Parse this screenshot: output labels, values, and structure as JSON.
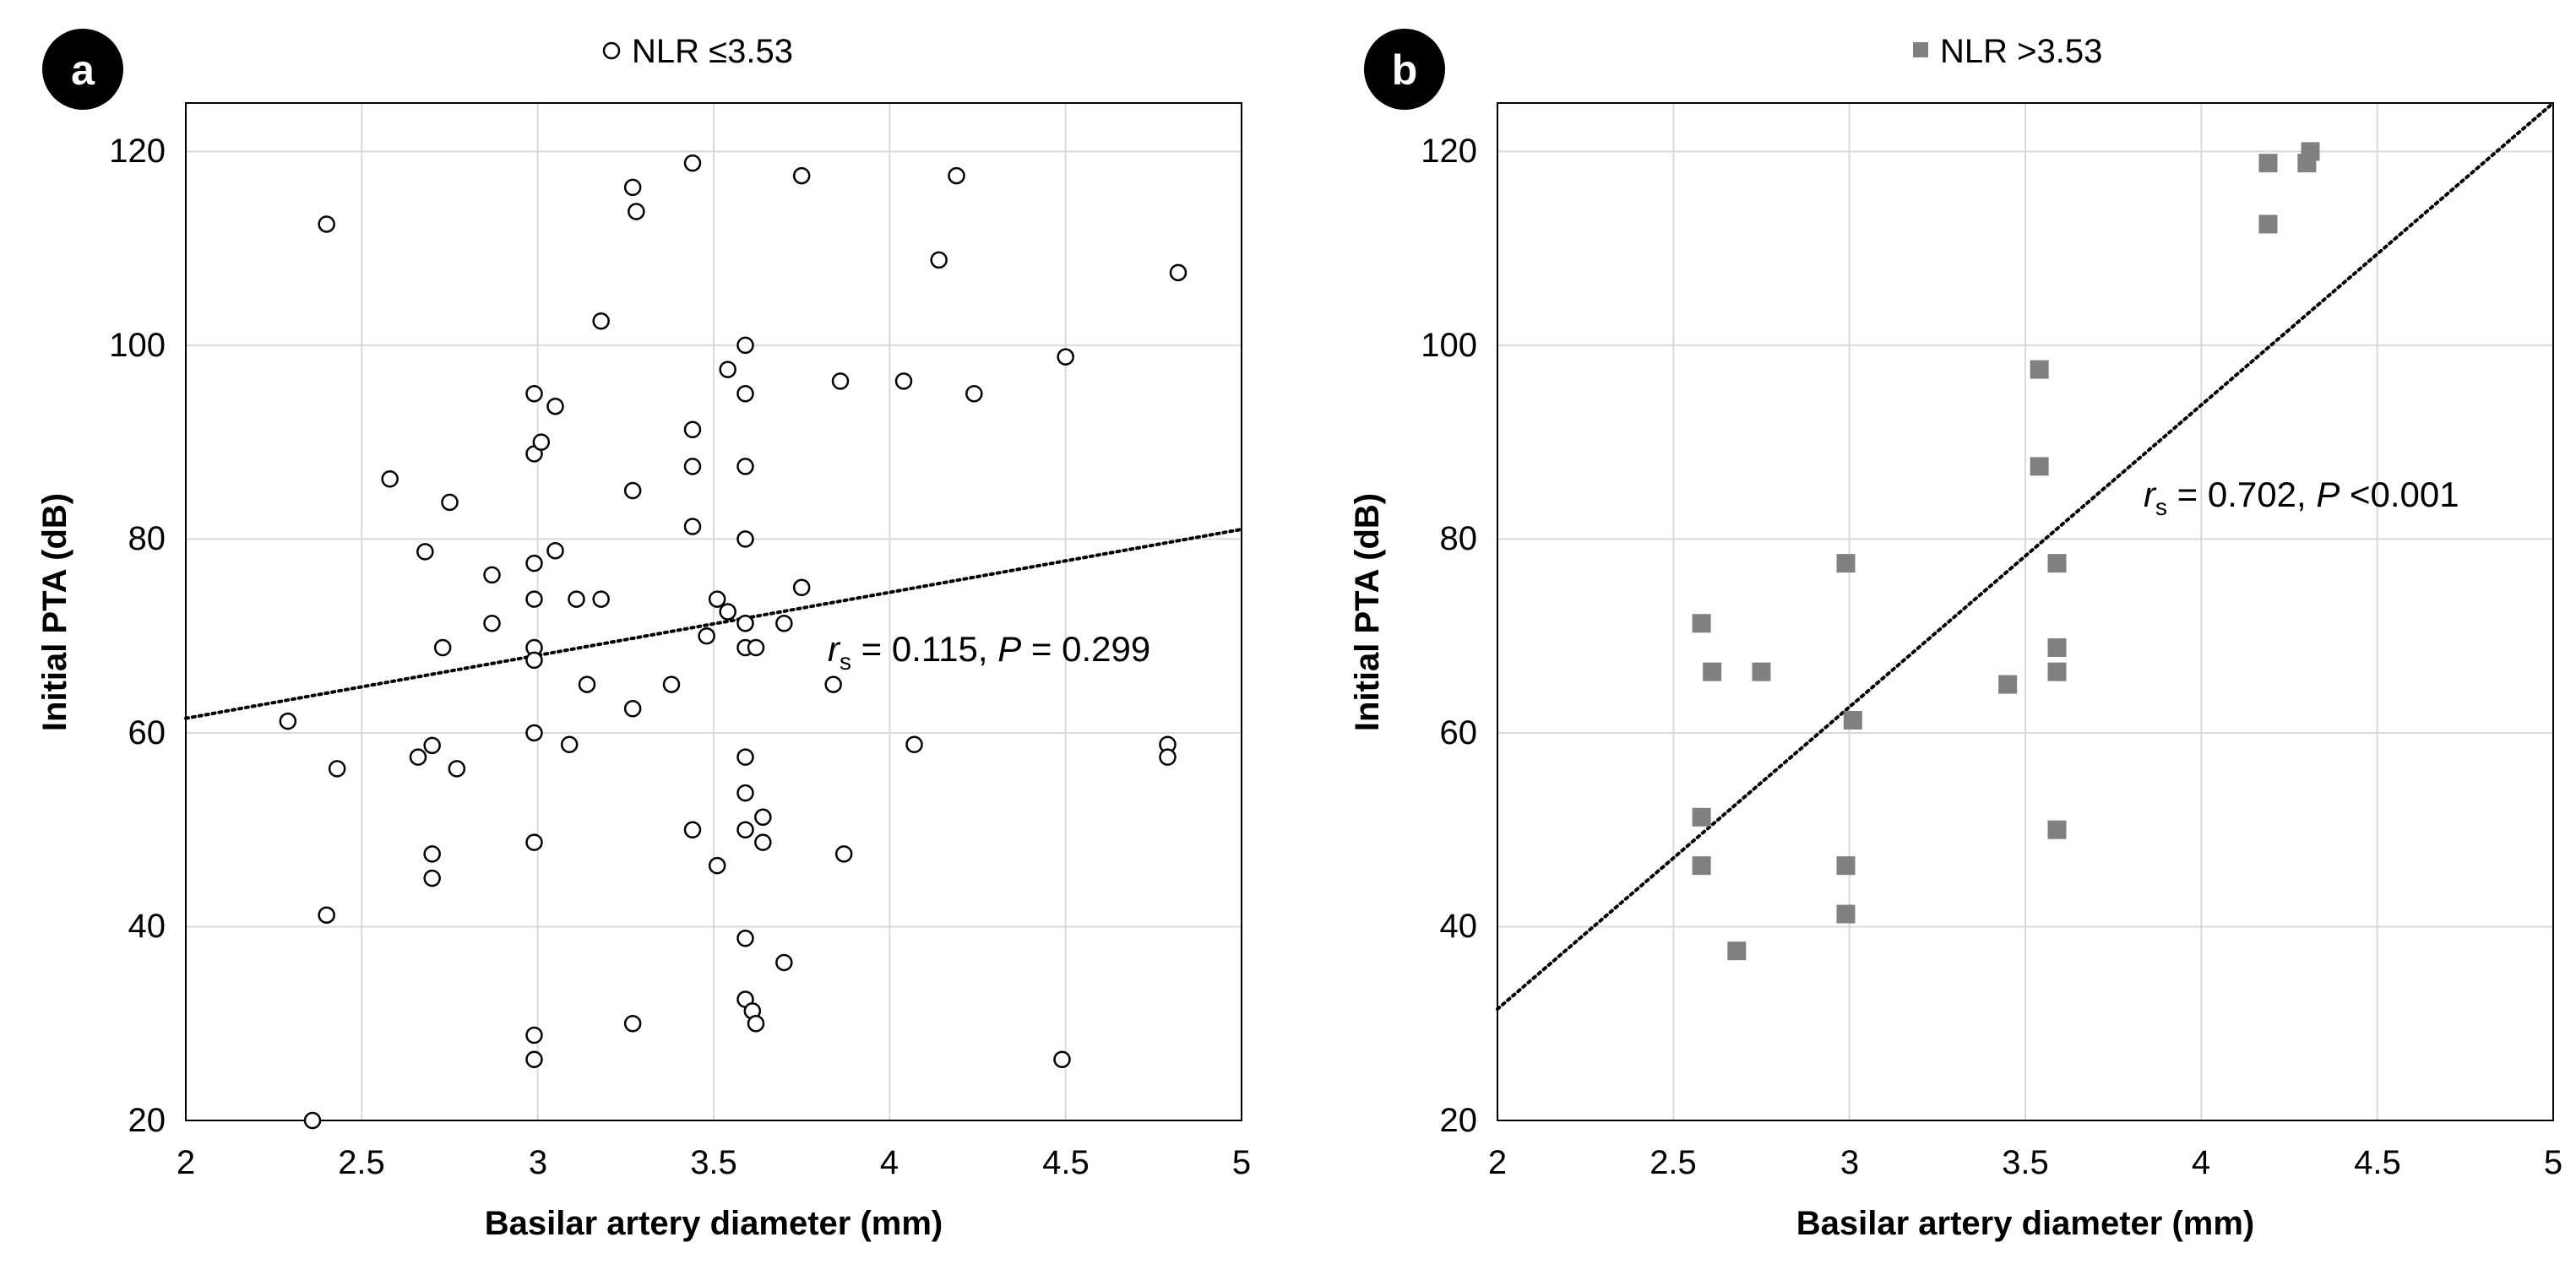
{
  "chart_data": [
    {
      "type": "scatter",
      "panel_label": "a",
      "legend_label": "NLR ≤3.53",
      "marker": "open-circle",
      "xlabel": "Basilar artery diameter (mm)",
      "ylabel": "Initial PTA (dB)",
      "xlim": [
        2,
        5
      ],
      "ylim": [
        20,
        125
      ],
      "x_ticks": [
        "2",
        "2.5",
        "3",
        "3.5",
        "4",
        "4.5",
        "5"
      ],
      "y_ticks": [
        "20",
        "40",
        "60",
        "80",
        "100",
        "120"
      ],
      "grid": true,
      "trendline": {
        "style": "dotted",
        "from": [
          2,
          61.5
        ],
        "to": [
          5,
          81
        ]
      },
      "annotation": {
        "r_symbol": "r",
        "r_sub": "s",
        "r_value": " = 0.115, ",
        "p_symbol": "P",
        "p_value": " = 0.299"
      },
      "points": [
        [
          2.29,
          61.2
        ],
        [
          2.4,
          112.5
        ],
        [
          2.4,
          41.2
        ],
        [
          2.43,
          56.3
        ],
        [
          2.36,
          20.0
        ],
        [
          2.58,
          86.2
        ],
        [
          2.66,
          57.5
        ],
        [
          2.68,
          78.7
        ],
        [
          2.7,
          58.7
        ],
        [
          2.7,
          47.5
        ],
        [
          2.7,
          45.0
        ],
        [
          2.73,
          68.8
        ],
        [
          2.75,
          83.8
        ],
        [
          2.77,
          56.3
        ],
        [
          2.87,
          76.3
        ],
        [
          2.87,
          71.3
        ],
        [
          2.99,
          95.0
        ],
        [
          2.99,
          88.8
        ],
        [
          3.01,
          90.0
        ],
        [
          3.05,
          93.7
        ],
        [
          2.99,
          77.5
        ],
        [
          3.05,
          78.8
        ],
        [
          2.99,
          73.8
        ],
        [
          2.99,
          68.8
        ],
        [
          2.99,
          67.5
        ],
        [
          2.99,
          60.0
        ],
        [
          2.99,
          48.7
        ],
        [
          2.99,
          28.8
        ],
        [
          2.99,
          26.3
        ],
        [
          3.09,
          58.8
        ],
        [
          3.11,
          73.8
        ],
        [
          3.14,
          65.0
        ],
        [
          3.18,
          102.5
        ],
        [
          3.18,
          73.8
        ],
        [
          3.27,
          116.3
        ],
        [
          3.28,
          113.8
        ],
        [
          3.27,
          85.0
        ],
        [
          3.27,
          62.5
        ],
        [
          3.27,
          30.0
        ],
        [
          3.38,
          65.0
        ],
        [
          3.44,
          118.8
        ],
        [
          3.44,
          91.3
        ],
        [
          3.44,
          87.5
        ],
        [
          3.44,
          81.3
        ],
        [
          3.44,
          50.0
        ],
        [
          3.48,
          70.0
        ],
        [
          3.51,
          73.8
        ],
        [
          3.54,
          72.5
        ],
        [
          3.51,
          46.3
        ],
        [
          3.54,
          97.5
        ],
        [
          3.59,
          100.0
        ],
        [
          3.59,
          95.0
        ],
        [
          3.59,
          87.5
        ],
        [
          3.59,
          80.0
        ],
        [
          3.59,
          71.3
        ],
        [
          3.59,
          68.8
        ],
        [
          3.62,
          68.8
        ],
        [
          3.59,
          57.5
        ],
        [
          3.59,
          53.8
        ],
        [
          3.59,
          50.0
        ],
        [
          3.64,
          51.3
        ],
        [
          3.64,
          48.7
        ],
        [
          3.59,
          38.8
        ],
        [
          3.59,
          32.5
        ],
        [
          3.61,
          31.3
        ],
        [
          3.62,
          30.0
        ],
        [
          3.7,
          71.3
        ],
        [
          3.7,
          36.3
        ],
        [
          3.75,
          117.5
        ],
        [
          3.75,
          75.0
        ],
        [
          3.84,
          65.0
        ],
        [
          3.86,
          96.3
        ],
        [
          3.87,
          47.5
        ],
        [
          4.04,
          96.3
        ],
        [
          4.07,
          58.8
        ],
        [
          4.14,
          108.8
        ],
        [
          4.19,
          117.5
        ],
        [
          4.24,
          95.0
        ],
        [
          4.5,
          98.8
        ],
        [
          4.49,
          26.3
        ],
        [
          4.79,
          58.8
        ],
        [
          4.79,
          57.5
        ],
        [
          4.82,
          107.5
        ]
      ]
    },
    {
      "type": "scatter",
      "panel_label": "b",
      "legend_label": "NLR >3.53",
      "marker": "filled-square",
      "marker_color": "#808080",
      "xlabel": "Basilar artery diameter (mm)",
      "ylabel": "Initial PTA (dB)",
      "xlim": [
        2,
        5
      ],
      "ylim": [
        20,
        125
      ],
      "x_ticks": [
        "2",
        "2.5",
        "3",
        "3.5",
        "4",
        "4.5",
        "5"
      ],
      "y_ticks": [
        "20",
        "40",
        "60",
        "80",
        "100",
        "120"
      ],
      "grid": true,
      "trendline": {
        "style": "dotted",
        "from": [
          2,
          31.5
        ],
        "to": [
          5,
          125
        ]
      },
      "annotation": {
        "r_symbol": "r",
        "r_sub": "s",
        "r_value": " = 0.702, ",
        "p_symbol": "P",
        "p_value": " <0.001"
      },
      "points": [
        [
          2.58,
          71.3
        ],
        [
          2.58,
          51.3
        ],
        [
          2.58,
          46.3
        ],
        [
          2.61,
          66.3
        ],
        [
          2.75,
          66.3
        ],
        [
          2.68,
          37.5
        ],
        [
          2.99,
          77.5
        ],
        [
          2.99,
          46.3
        ],
        [
          2.99,
          41.3
        ],
        [
          3.01,
          61.3
        ],
        [
          3.45,
          65.0
        ],
        [
          3.54,
          97.5
        ],
        [
          3.54,
          87.5
        ],
        [
          3.59,
          77.5
        ],
        [
          3.59,
          68.8
        ],
        [
          3.59,
          66.3
        ],
        [
          3.59,
          50.0
        ],
        [
          4.19,
          118.8
        ],
        [
          4.19,
          112.5
        ],
        [
          4.3,
          118.8
        ],
        [
          4.31,
          120.0
        ]
      ]
    }
  ]
}
